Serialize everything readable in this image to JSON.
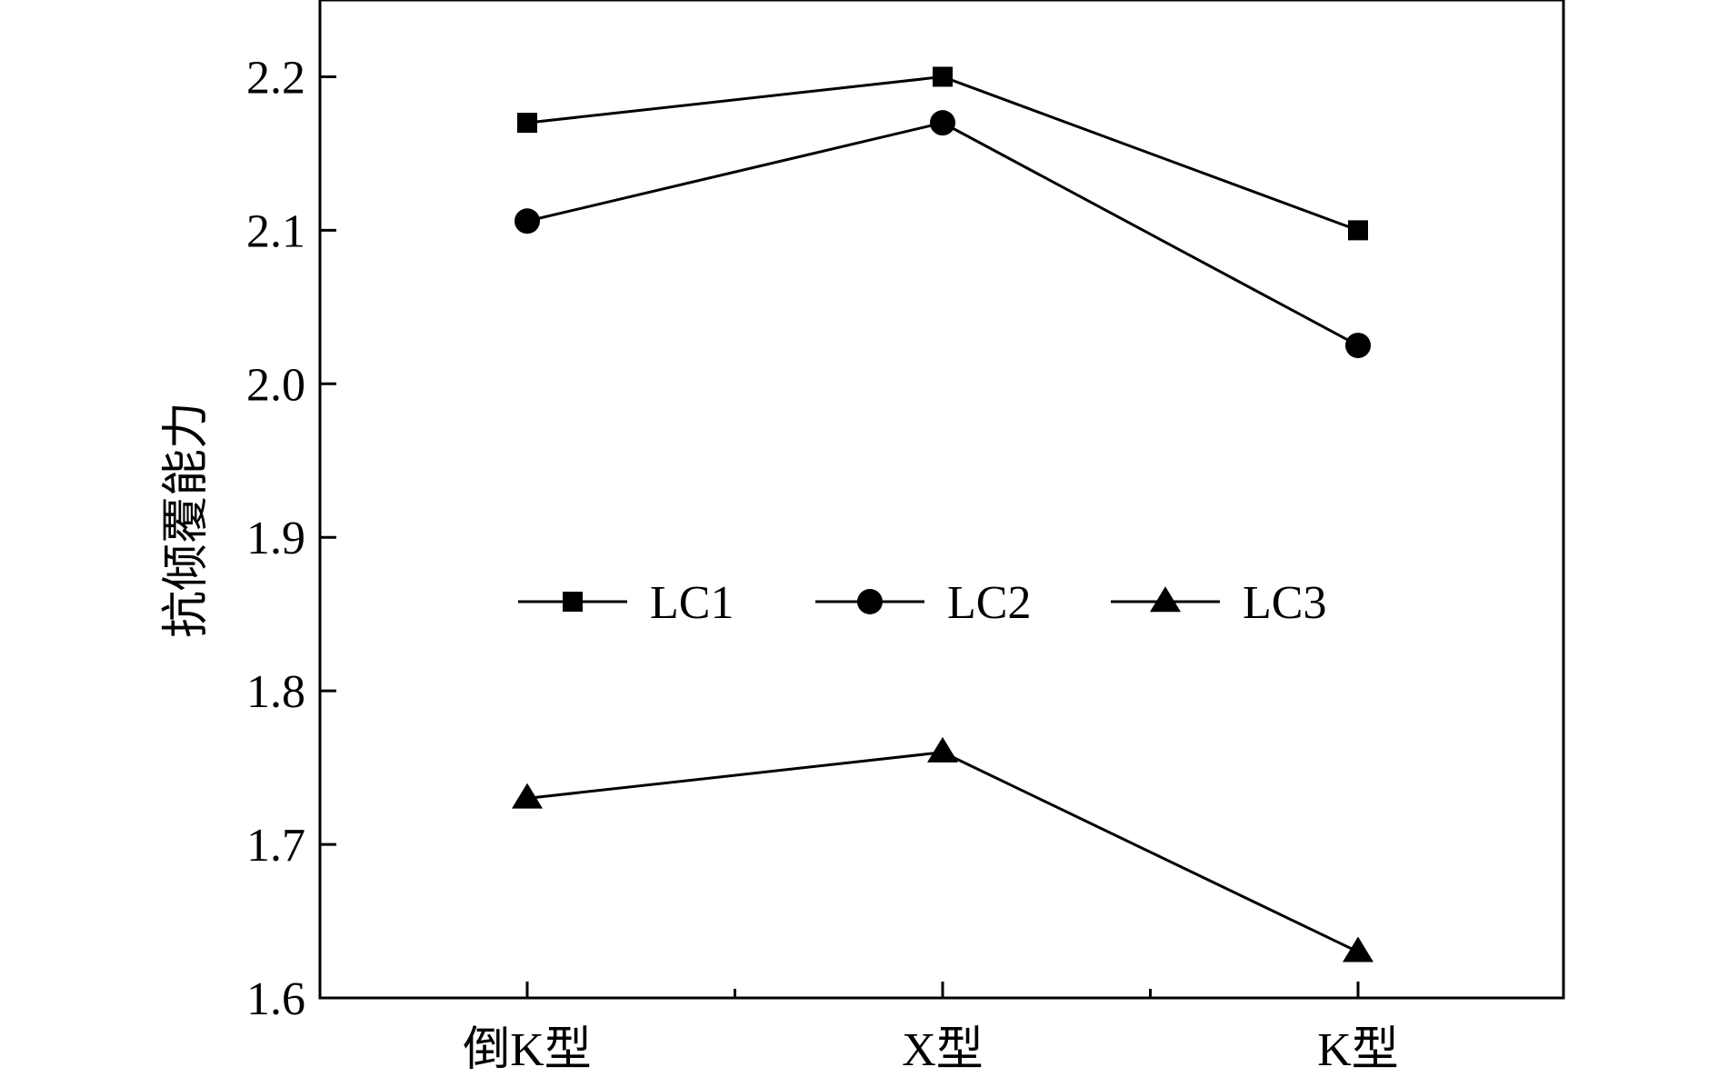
{
  "chart_data": {
    "type": "line",
    "title": "",
    "xlabel": "",
    "ylabel": "抗倾覆能力",
    "categories": [
      "倒K型",
      "X型",
      "K型"
    ],
    "ylim": [
      1.6,
      2.25
    ],
    "yticks": [
      1.6,
      1.7,
      1.8,
      1.9,
      2.0,
      2.1,
      2.2
    ],
    "ytick_labels": [
      "1.6",
      "1.7",
      "1.8",
      "1.9",
      "2.0",
      "2.1",
      "2.2"
    ],
    "grid": false,
    "legend_position": "center",
    "series": [
      {
        "name": "LC1",
        "marker": "square",
        "values": [
          2.17,
          2.2,
          2.1
        ]
      },
      {
        "name": "LC2",
        "marker": "circle",
        "values": [
          2.106,
          2.17,
          2.025
        ]
      },
      {
        "name": "LC3",
        "marker": "triangle",
        "values": [
          1.73,
          1.76,
          1.63
        ]
      }
    ],
    "colors": {
      "line": "#000000",
      "marker": "#000000"
    }
  }
}
